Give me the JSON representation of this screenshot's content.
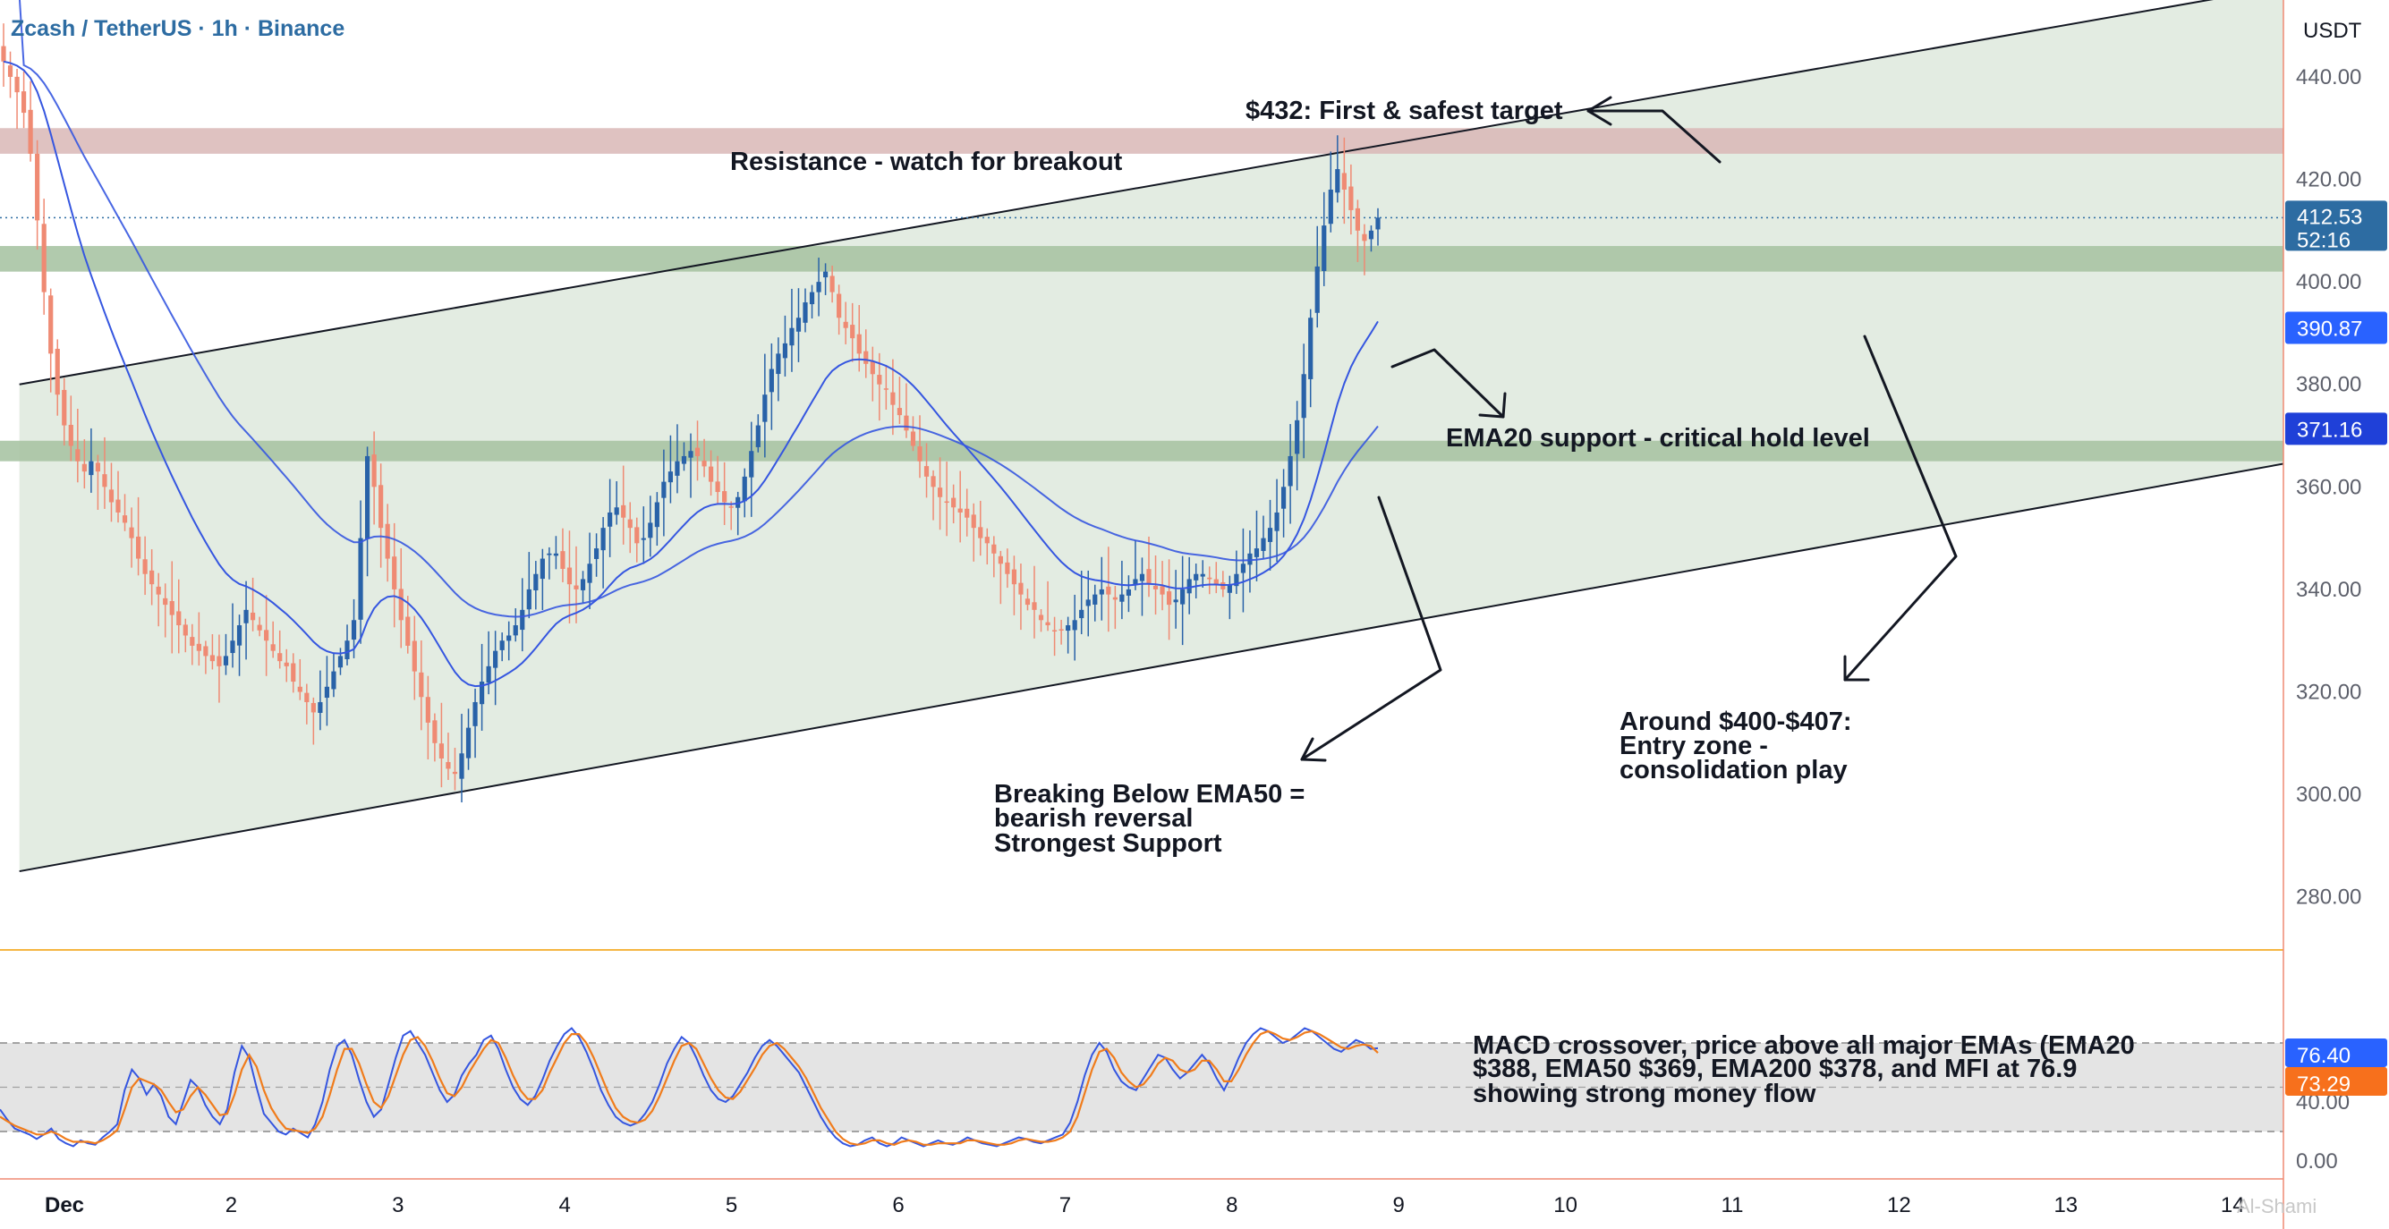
{
  "header": {
    "symbol_title": "Zcash / TetherUS · 1h · Binance",
    "currency_label": "USDT",
    "watermark": "Al-Shami"
  },
  "annotations": {
    "first_target": "$432: First & safest target",
    "resistance": "Resistance - watch for breakout",
    "ema20_support": "EMA20 support - critical hold level",
    "entry_zone": [
      "Around $400-$407:",
      "Entry zone -",
      "consolidation play"
    ],
    "ema50_break": [
      "Breaking Below EMA50 =",
      "bearish reversal",
      "Strongest Support"
    ],
    "macd_note": [
      "MACD crossover, price above all major EMAs (EMA20",
      "$388, EMA50 $369, EMA200 $378, and MFI at 76.9",
      "showing strong money flow"
    ]
  },
  "colors": {
    "up_candle": "#2962a8",
    "down_candle": "#ef8a73",
    "ema_line": "#3556e0",
    "channel_fill": "#e3ece2",
    "support_band": "#a8c4a4",
    "resistance_band": "#d9b7b6",
    "oscillator_k": "#3556e0",
    "oscillator_d": "#f07c1c",
    "oscillator_band": "#e4e4e4",
    "price_tag": "#2d6ca2",
    "ema20_tag": "#2962ff",
    "ema50_tag": "#1f40d8",
    "osc_k_tag": "#2962ff",
    "osc_d_tag": "#f7701c"
  },
  "chart_data": {
    "type": "candlestick",
    "title": "Zcash / TetherUS · 1h · Binance",
    "price_axis": {
      "min": 270,
      "max": 455,
      "ticks": [
        "440.00",
        "420.00",
        "400.00",
        "380.00",
        "360.00",
        "340.00",
        "320.00",
        "300.00",
        "280.00"
      ],
      "tick_values": [
        440,
        420,
        400,
        380,
        360,
        340,
        320,
        300,
        280
      ]
    },
    "time_axis": {
      "labels": [
        "Dec",
        "2",
        "3",
        "4",
        "5",
        "6",
        "7",
        "8",
        "9",
        "10",
        "11",
        "12",
        "13",
        "14"
      ],
      "day_values": [
        1,
        2,
        3,
        4,
        5,
        6,
        7,
        8,
        9,
        10,
        11,
        12,
        13,
        14
      ]
    },
    "current_price": {
      "value": "412.53",
      "countdown": "52:16",
      "numeric": 412.53
    },
    "ema20": {
      "last": "390.87",
      "numeric": 390.87
    },
    "ema50": {
      "last": "371.16",
      "numeric": 371.16
    },
    "resistance_zone": [
      425,
      430
    ],
    "support_zones": [
      [
        402,
        407
      ],
      [
        365,
        369
      ]
    ],
    "channel": {
      "upper": {
        "start": {
          "day": 0.73,
          "price": 380
        },
        "end": {
          "day": 14.73,
          "price": 460
        }
      },
      "lower": {
        "start": {
          "day": 0.73,
          "price": 285
        },
        "end": {
          "day": 14.73,
          "price": 367
        }
      }
    },
    "close_series": [
      443,
      440,
      437,
      433,
      425,
      412,
      398,
      386,
      378,
      372,
      368,
      365,
      363,
      365,
      363,
      360,
      357,
      355,
      353,
      350,
      346,
      343,
      341,
      339,
      337,
      335,
      333,
      331,
      329,
      328,
      327,
      326,
      325,
      327,
      330,
      333,
      336,
      334,
      332,
      330,
      328,
      326,
      325,
      322,
      320,
      318,
      316,
      318,
      321,
      324,
      327,
      330,
      334,
      350,
      366,
      360,
      352,
      346,
      340,
      334,
      329,
      324,
      319,
      314,
      310,
      307,
      305,
      304,
      308,
      313,
      318,
      322,
      325,
      328,
      330,
      331,
      333,
      336,
      340,
      343,
      346,
      347,
      347,
      344,
      341,
      340,
      342,
      345,
      348,
      352,
      355,
      356,
      354,
      352,
      349,
      350,
      353,
      357,
      361,
      363,
      365,
      366,
      367,
      366,
      364,
      361,
      359,
      357,
      356,
      358,
      362,
      367,
      372,
      378,
      383,
      386,
      388,
      391,
      393,
      396,
      398,
      400,
      402,
      398,
      393,
      391,
      389,
      386,
      384,
      382,
      380,
      379,
      376,
      374,
      371,
      368,
      365,
      362,
      360,
      358,
      357,
      356,
      355,
      354,
      352,
      350,
      349,
      347,
      345,
      343,
      341,
      339,
      337,
      336,
      334,
      333,
      332,
      332,
      333,
      334,
      336,
      338,
      339,
      340,
      339,
      338,
      339,
      340,
      342,
      343,
      341,
      340,
      339,
      337,
      338,
      340,
      342,
      343,
      343,
      342,
      341,
      340,
      341,
      343,
      345,
      347,
      348,
      350,
      352,
      355,
      360,
      366,
      373,
      382,
      393,
      403,
      411,
      418,
      422,
      418,
      414,
      410,
      408,
      410,
      412.53
    ],
    "oscillator": {
      "name": "",
      "axis_ticks": [
        "40.00",
        "0.00"
      ],
      "axis_tick_values": [
        40,
        0
      ],
      "band": [
        20,
        80
      ],
      "k_last": "76.40",
      "d_last": "73.29",
      "k_numeric": 76.4,
      "d_numeric": 73.29,
      "k_series": [
        35,
        28,
        22,
        20,
        18,
        15,
        18,
        22,
        15,
        12,
        10,
        14,
        12,
        11,
        16,
        20,
        25,
        48,
        62,
        56,
        45,
        52,
        44,
        30,
        25,
        40,
        55,
        50,
        38,
        30,
        25,
        35,
        60,
        78,
        70,
        50,
        32,
        26,
        20,
        18,
        22,
        19,
        16,
        25,
        40,
        62,
        78,
        82,
        72,
        55,
        40,
        30,
        35,
        52,
        70,
        85,
        88,
        80,
        72,
        60,
        48,
        40,
        45,
        58,
        66,
        72,
        82,
        85,
        76,
        62,
        50,
        42,
        38,
        44,
        55,
        68,
        78,
        86,
        90,
        84,
        74,
        62,
        48,
        38,
        30,
        26,
        24,
        26,
        32,
        40,
        52,
        66,
        76,
        84,
        80,
        70,
        58,
        48,
        42,
        40,
        44,
        52,
        60,
        70,
        78,
        82,
        78,
        72,
        66,
        60,
        50,
        40,
        30,
        22,
        16,
        12,
        10,
        11,
        14,
        16,
        12,
        10,
        12,
        16,
        14,
        12,
        10,
        12,
        14,
        12,
        11,
        13,
        16,
        14,
        12,
        11,
        10,
        12,
        14,
        16,
        15,
        13,
        12,
        14,
        16,
        18,
        26,
        40,
        58,
        72,
        80,
        74,
        62,
        54,
        50,
        48,
        56,
        64,
        72,
        70,
        62,
        56,
        60,
        66,
        72,
        66,
        56,
        48,
        58,
        70,
        80,
        86,
        90,
        88,
        84,
        80,
        82,
        86,
        90,
        88,
        84,
        80,
        76,
        74,
        78,
        82,
        80,
        76,
        76.4
      ],
      "d_series": [
        30,
        27,
        24,
        22,
        20,
        18,
        18,
        20,
        18,
        15,
        13,
        13,
        13,
        12,
        14,
        17,
        21,
        35,
        50,
        56,
        54,
        52,
        48,
        40,
        33,
        35,
        44,
        50,
        45,
        38,
        31,
        32,
        45,
        62,
        72,
        64,
        48,
        36,
        28,
        22,
        21,
        20,
        19,
        22,
        30,
        45,
        62,
        76,
        76,
        66,
        52,
        40,
        36,
        44,
        58,
        72,
        82,
        84,
        78,
        68,
        56,
        46,
        44,
        50,
        60,
        68,
        76,
        82,
        80,
        70,
        58,
        48,
        42,
        42,
        48,
        60,
        70,
        80,
        86,
        86,
        80,
        70,
        58,
        46,
        36,
        30,
        27,
        26,
        28,
        34,
        44,
        56,
        68,
        78,
        80,
        76,
        66,
        56,
        48,
        43,
        42,
        47,
        55,
        63,
        72,
        78,
        80,
        76,
        70,
        64,
        56,
        46,
        36,
        28,
        20,
        15,
        12,
        11,
        12,
        14,
        14,
        12,
        11,
        13,
        14,
        13,
        11,
        11,
        12,
        12,
        12,
        12,
        14,
        14,
        13,
        12,
        11,
        11,
        12,
        14,
        15,
        14,
        13,
        13,
        14,
        16,
        20,
        30,
        46,
        62,
        74,
        76,
        70,
        60,
        54,
        50,
        52,
        58,
        66,
        70,
        68,
        62,
        60,
        62,
        68,
        68,
        62,
        54,
        54,
        62,
        72,
        80,
        86,
        88,
        86,
        83,
        82,
        84,
        87,
        88,
        86,
        83,
        80,
        77,
        76,
        78,
        79,
        78,
        73.29
      ]
    }
  }
}
